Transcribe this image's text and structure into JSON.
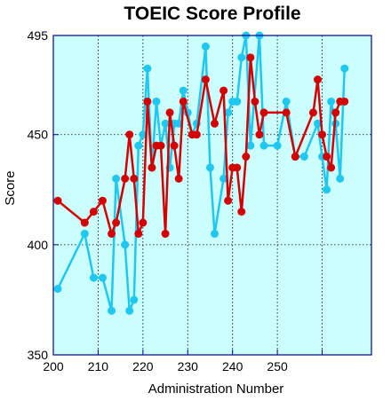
{
  "chart_data": {
    "type": "line",
    "title": "TOEIC Score Profile",
    "xlabel": "Administration Number",
    "ylabel": "Score",
    "xlim": [
      200,
      271
    ],
    "ylim": [
      350,
      495
    ],
    "x_ticks": [
      200,
      210,
      220,
      230,
      240,
      250
    ],
    "x_gridlines": [
      200,
      210,
      220,
      230,
      240,
      250,
      260
    ],
    "y_ticks": [
      350,
      400,
      450,
      495
    ],
    "grid": true,
    "plot_background": "#ccffff",
    "series": [
      {
        "color": "#1ec8f0",
        "points": [
          [
            201,
            380
          ],
          [
            207,
            405
          ],
          [
            209,
            385
          ],
          [
            211,
            385
          ],
          [
            213,
            370
          ],
          [
            214,
            430
          ],
          [
            216,
            400
          ],
          [
            217,
            370
          ],
          [
            218,
            375
          ],
          [
            219,
            445
          ],
          [
            220,
            450
          ],
          [
            221,
            480
          ],
          [
            222,
            435
          ],
          [
            223,
            465
          ],
          [
            224,
            445
          ],
          [
            225,
            455
          ],
          [
            226,
            435
          ],
          [
            227,
            455
          ],
          [
            228,
            455
          ],
          [
            229,
            470
          ],
          [
            230,
            460
          ],
          [
            231,
            450
          ],
          [
            232,
            455
          ],
          [
            234,
            490
          ],
          [
            235,
            435
          ],
          [
            236,
            405
          ],
          [
            238,
            430
          ],
          [
            239,
            460
          ],
          [
            240,
            465
          ],
          [
            241,
            465
          ],
          [
            242,
            485
          ],
          [
            243,
            495
          ],
          [
            244,
            445
          ],
          [
            246,
            495
          ],
          [
            247,
            445
          ],
          [
            250,
            445
          ],
          [
            252,
            465
          ],
          [
            254,
            440
          ],
          [
            256,
            440
          ],
          [
            259,
            455
          ],
          [
            260,
            440
          ],
          [
            261,
            425
          ],
          [
            262,
            465
          ],
          [
            263,
            455
          ],
          [
            264,
            430
          ],
          [
            265,
            480
          ]
        ]
      },
      {
        "color": "#d40000",
        "points": [
          [
            201,
            420
          ],
          [
            207,
            410
          ],
          [
            209,
            415
          ],
          [
            211,
            420
          ],
          [
            213,
            405
          ],
          [
            214,
            410
          ],
          [
            216,
            430
          ],
          [
            217,
            450
          ],
          [
            218,
            430
          ],
          [
            219,
            405
          ],
          [
            220,
            410
          ],
          [
            221,
            465
          ],
          [
            222,
            435
          ],
          [
            223,
            445
          ],
          [
            224,
            445
          ],
          [
            225,
            405
          ],
          [
            226,
            460
          ],
          [
            227,
            445
          ],
          [
            228,
            430
          ],
          [
            229,
            465
          ],
          [
            231,
            450
          ],
          [
            232,
            450
          ],
          [
            234,
            475
          ],
          [
            236,
            455
          ],
          [
            238,
            470
          ],
          [
            239,
            420
          ],
          [
            240,
            435
          ],
          [
            241,
            435
          ],
          [
            242,
            415
          ],
          [
            243,
            440
          ],
          [
            244,
            485
          ],
          [
            245,
            465
          ],
          [
            246,
            450
          ],
          [
            247,
            460
          ],
          [
            252,
            460
          ],
          [
            254,
            440
          ],
          [
            258,
            460
          ],
          [
            259,
            475
          ],
          [
            260,
            450
          ],
          [
            261,
            440
          ],
          [
            262,
            435
          ],
          [
            263,
            460
          ],
          [
            264,
            465
          ],
          [
            265,
            465
          ]
        ]
      }
    ]
  }
}
